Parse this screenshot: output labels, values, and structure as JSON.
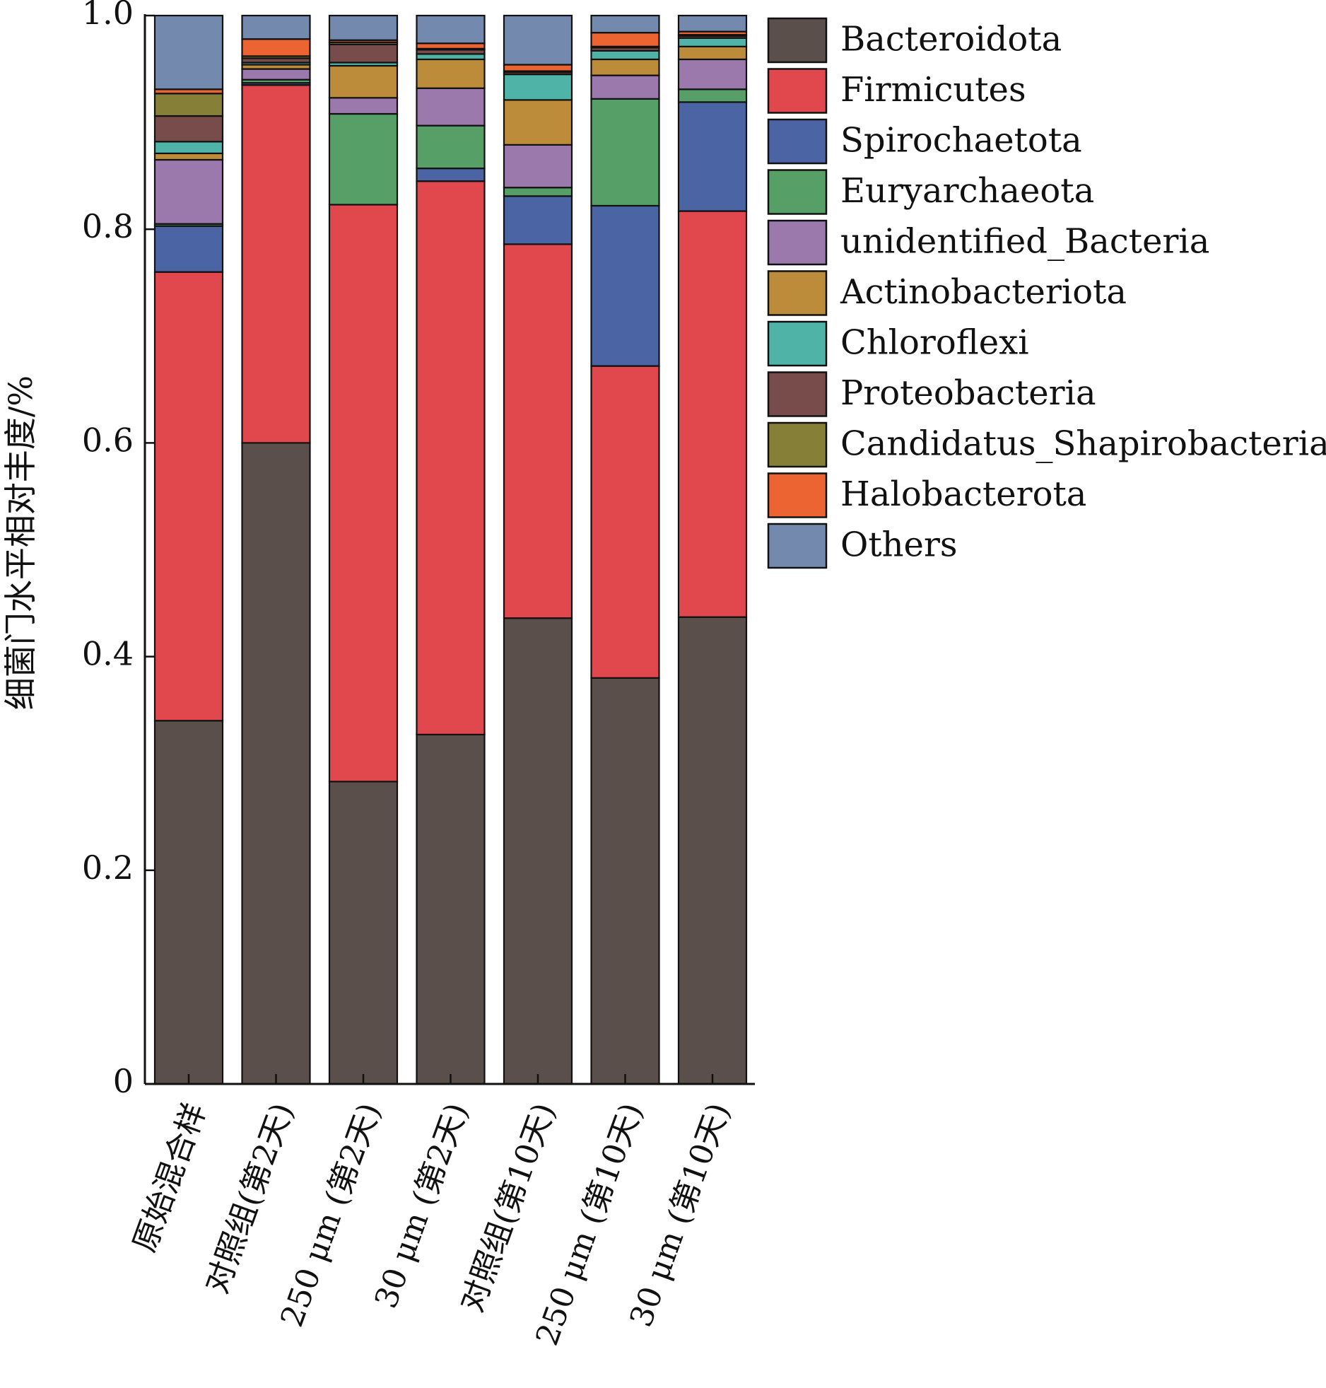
{
  "chart_data": {
    "type": "bar",
    "stacked": true,
    "title": "",
    "xlabel": "",
    "ylabel": "细菌门水平相对丰度/%",
    "ylim": [
      0,
      1.0
    ],
    "yticks": [
      "0",
      "0.2",
      "0.4",
      "0.6",
      "0.8",
      "1.0"
    ],
    "grid": false,
    "legend_position": "right",
    "categories": [
      "原始混合样",
      "对照组(第2天)",
      "250 μm (第2天)",
      "30 μm (第2天)",
      "对照组(第10天)",
      "250 μm (第10天)",
      "30 μm (第10天)"
    ],
    "series": [
      {
        "name": "Bacteroidota",
        "color": "#5a4f4b",
        "values": [
          0.34,
          0.6,
          0.283,
          0.327,
          0.436,
          0.38,
          0.437
        ]
      },
      {
        "name": "Firmicutes",
        "color": "#e0484e",
        "values": [
          0.42,
          0.335,
          0.54,
          0.518,
          0.35,
          0.292,
          0.38
        ]
      },
      {
        "name": "Spirochaetota",
        "color": "#4b64a3",
        "values": [
          0.043,
          0.002,
          0.0,
          0.012,
          0.045,
          0.15,
          0.102
        ]
      },
      {
        "name": "Euryarchaeota",
        "color": "#56a068",
        "values": [
          0.002,
          0.003,
          0.085,
          0.04,
          0.008,
          0.1,
          0.012
        ]
      },
      {
        "name": "unidentified_Bacteria",
        "color": "#9b79ad",
        "values": [
          0.06,
          0.01,
          0.015,
          0.035,
          0.04,
          0.022,
          0.028
        ]
      },
      {
        "name": "Actinobacteriota",
        "color": "#bc8c3a",
        "values": [
          0.006,
          0.004,
          0.03,
          0.027,
          0.042,
          0.015,
          0.012
        ]
      },
      {
        "name": "Chloroflexi",
        "color": "#4fb3a7",
        "values": [
          0.011,
          0.002,
          0.003,
          0.005,
          0.024,
          0.008,
          0.008
        ]
      },
      {
        "name": "Proteobacteria",
        "color": "#774c4b",
        "values": [
          0.024,
          0.004,
          0.017,
          0.004,
          0.002,
          0.003,
          0.002
        ]
      },
      {
        "name": "Candidatus_Shapirobacteria",
        "color": "#857f38",
        "values": [
          0.021,
          0.002,
          0.002,
          0.001,
          0.001,
          0.001,
          0.001
        ]
      },
      {
        "name": "Halobacterota",
        "color": "#ec6432",
        "values": [
          0.004,
          0.016,
          0.002,
          0.005,
          0.006,
          0.013,
          0.003
        ]
      },
      {
        "name": "Others",
        "color": "#7389ae",
        "values": [
          0.069,
          0.022,
          0.023,
          0.026,
          0.046,
          0.016,
          0.015
        ]
      }
    ]
  }
}
